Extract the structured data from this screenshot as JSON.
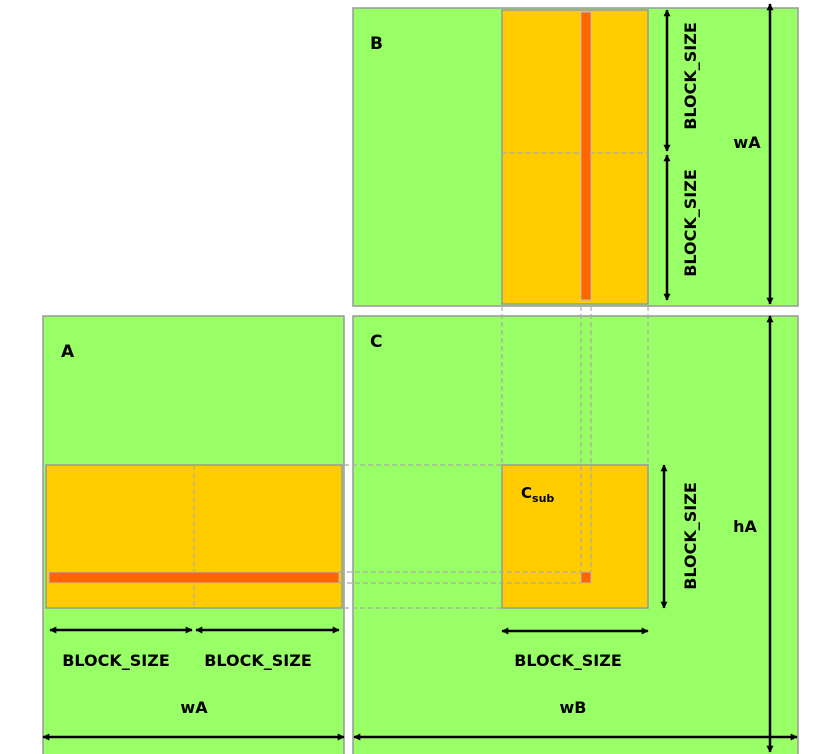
{
  "colors": {
    "matrix_fill": "#99FF66",
    "matrix_stroke": "#999999",
    "block_fill": "#FFCC00",
    "row_col_fill": "#FF6600",
    "guide_dash": "#aaaaaa",
    "arrow": "#000000"
  },
  "matrices": {
    "a": {
      "label": "A"
    },
    "b": {
      "label": "B"
    },
    "c": {
      "label": "C"
    }
  },
  "c_sub": {
    "main": "C",
    "sub": "sub"
  },
  "dimensions": {
    "block_size": "BLOCK_SIZE",
    "wA": "wA",
    "wB": "wB",
    "hA": "hA"
  }
}
